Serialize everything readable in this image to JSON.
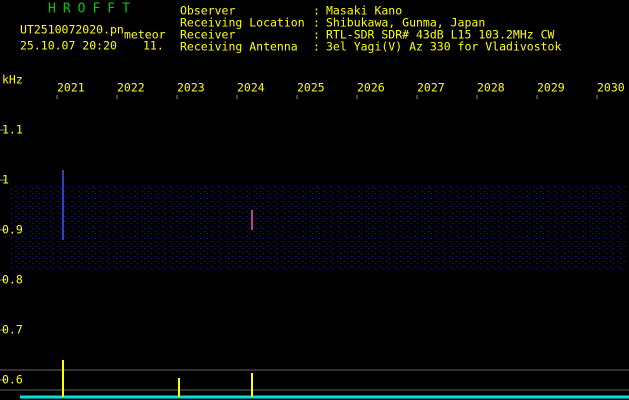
{
  "header": {
    "app": "HROFFT",
    "file": "UT2510072020.pn",
    "tag": "meteor",
    "datetime": "25.10.07 20:20",
    "count": "11.",
    "fields": [
      {
        "label": "Observer",
        "value": "Masaki Kano"
      },
      {
        "label": "Receiving Location",
        "value": "Shibukawa, Gunma, Japan"
      },
      {
        "label": "Receiver",
        "value": "RTL-SDR SDR# 43dB L15 103.2MHz CW"
      },
      {
        "label": "Receiving Antenna",
        "value": "3el Yagi(V) Az 330 for Vladivostok"
      }
    ],
    "separator": ":"
  },
  "chart_data": {
    "type": "spectrogram",
    "y_label": "kHz",
    "xlim": [
      2020,
      2030
    ],
    "xticks": [
      2021,
      2022,
      2023,
      2024,
      2025,
      2026,
      2027,
      2028,
      2029,
      2030
    ],
    "ylim": [
      0.56,
      1.17
    ],
    "yticks": [
      0.6,
      0.7,
      0.8,
      0.9,
      1.0,
      1.1
    ]
  }
}
